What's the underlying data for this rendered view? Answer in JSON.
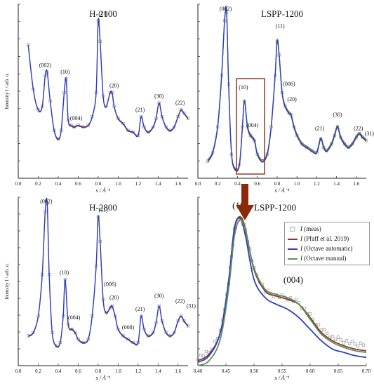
{
  "colors": {
    "measured": "#8a8a8a",
    "pfaff": "#8b3a2a",
    "octave_auto": "#2f3fbf",
    "octave_manual": "#5d8f5d",
    "highlight_box": "#8b2a1a",
    "arrow": "#8b2a0a"
  },
  "chart_data": [
    {
      "type": "line",
      "panel": "top-left",
      "title": "H-2100",
      "xlabel": "s / Å⁻¹",
      "ylabel": "Intensity I / arb. u.",
      "xlim": [
        0,
        1.7
      ],
      "xticks": [
        "0.0",
        "0.2",
        "0.4",
        "0.6",
        "0.8",
        "1.0",
        "1.2",
        "1.4",
        "1.6"
      ],
      "ylim": [
        0,
        1
      ],
      "series": [
        {
          "x": [
            0.1,
            0.15,
            0.2,
            0.24,
            0.27,
            0.29,
            0.32,
            0.36,
            0.4,
            0.43,
            0.46,
            0.48,
            0.5,
            0.53,
            0.56,
            0.6,
            0.65,
            0.7,
            0.74,
            0.78,
            0.8,
            0.82,
            0.85,
            0.88,
            0.92,
            0.94,
            0.96,
            1.0,
            1.05,
            1.1,
            1.15,
            1.2,
            1.23,
            1.26,
            1.3,
            1.35,
            1.38,
            1.41,
            1.44,
            1.48,
            1.52,
            1.56,
            1.6,
            1.63,
            1.66,
            1.7
          ],
          "y": [
            0.78,
            0.52,
            0.4,
            0.42,
            0.6,
            0.62,
            0.45,
            0.28,
            0.23,
            0.28,
            0.5,
            0.58,
            0.34,
            0.31,
            0.3,
            0.31,
            0.3,
            0.31,
            0.36,
            0.5,
            0.92,
            0.8,
            0.48,
            0.42,
            0.5,
            0.5,
            0.42,
            0.35,
            0.32,
            0.28,
            0.27,
            0.25,
            0.36,
            0.3,
            0.27,
            0.3,
            0.35,
            0.44,
            0.36,
            0.3,
            0.28,
            0.3,
            0.36,
            0.4,
            0.38,
            0.35
          ]
        }
      ],
      "annotations": [
        {
          "label": "(002)",
          "x": 0.27,
          "y": 0.65
        },
        {
          "label": "(10)",
          "x": 0.47,
          "y": 0.61
        },
        {
          "label": "(004)",
          "x": 0.58,
          "y": 0.34
        },
        {
          "label": "(11)",
          "x": 0.85,
          "y": 0.95
        },
        {
          "label": "(20)",
          "x": 0.96,
          "y": 0.53
        },
        {
          "label": "(21)",
          "x": 1.22,
          "y": 0.39
        },
        {
          "label": "(30)",
          "x": 1.41,
          "y": 0.47
        },
        {
          "label": "(22)",
          "x": 1.62,
          "y": 0.43
        }
      ]
    },
    {
      "type": "line",
      "panel": "top-right",
      "title": "LSPP-1200",
      "xlabel": "s / Å⁻¹",
      "xlim": [
        0,
        1.7
      ],
      "xticks": [
        "0.0",
        "0.2",
        "0.4",
        "0.6",
        "0.8",
        "1.0",
        "1.2",
        "1.4",
        "1.6"
      ],
      "ylim": [
        0,
        1
      ],
      "series": [
        {
          "x": [
            0.1,
            0.15,
            0.2,
            0.24,
            0.27,
            0.29,
            0.31,
            0.34,
            0.38,
            0.42,
            0.45,
            0.47,
            0.5,
            0.53,
            0.57,
            0.6,
            0.65,
            0.7,
            0.74,
            0.78,
            0.8,
            0.82,
            0.85,
            0.88,
            0.92,
            0.94,
            0.97,
            1.0,
            1.05,
            1.1,
            1.15,
            1.2,
            1.24,
            1.27,
            1.3,
            1.35,
            1.38,
            1.41,
            1.44,
            1.48,
            1.52,
            1.56,
            1.6,
            1.63,
            1.66,
            1.7
          ],
          "y": [
            0.1,
            0.15,
            0.3,
            0.6,
            0.92,
            0.97,
            0.55,
            0.14,
            0.05,
            0.08,
            0.3,
            0.45,
            0.3,
            0.25,
            0.22,
            0.14,
            0.1,
            0.14,
            0.3,
            0.6,
            0.8,
            0.72,
            0.5,
            0.42,
            0.38,
            0.37,
            0.3,
            0.25,
            0.2,
            0.18,
            0.16,
            0.15,
            0.23,
            0.18,
            0.16,
            0.2,
            0.25,
            0.3,
            0.24,
            0.2,
            0.18,
            0.2,
            0.24,
            0.26,
            0.24,
            0.22
          ]
        }
      ],
      "annotations": [
        {
          "label": "(002)",
          "x": 0.28,
          "y": 0.98
        },
        {
          "label": "(10)",
          "x": 0.46,
          "y": 0.52
        },
        {
          "label": "(004)",
          "x": 0.55,
          "y": 0.3
        },
        {
          "label": "(11)",
          "x": 0.83,
          "y": 0.88
        },
        {
          "label": "(006)",
          "x": 0.92,
          "y": 0.54
        },
        {
          "label": "(20)",
          "x": 0.95,
          "y": 0.45
        },
        {
          "label": "(21)",
          "x": 1.23,
          "y": 0.28
        },
        {
          "label": "(30)",
          "x": 1.41,
          "y": 0.36
        },
        {
          "label": "(22)",
          "x": 1.62,
          "y": 0.28
        },
        {
          "label": "(31)",
          "x": 1.73,
          "y": 0.25
        }
      ]
    },
    {
      "type": "line",
      "panel": "bottom-left",
      "title": "H-2800",
      "xlabel": "s / Å⁻¹",
      "ylabel": "Intensity I / arb. u.",
      "xlim": [
        0,
        1.7
      ],
      "xticks": [
        "0.0",
        "0.2",
        "0.4",
        "0.6",
        "0.8",
        "1.0",
        "1.2",
        "1.4",
        "1.6"
      ],
      "ylim": [
        0,
        1
      ],
      "series": [
        {
          "x": [
            0.1,
            0.15,
            0.2,
            0.24,
            0.27,
            0.29,
            0.31,
            0.34,
            0.38,
            0.42,
            0.45,
            0.47,
            0.5,
            0.54,
            0.57,
            0.6,
            0.65,
            0.7,
            0.74,
            0.78,
            0.8,
            0.82,
            0.85,
            0.88,
            0.92,
            0.94,
            0.97,
            1.0,
            1.05,
            1.1,
            1.15,
            1.2,
            1.23,
            1.26,
            1.3,
            1.35,
            1.38,
            1.41,
            1.44,
            1.48,
            1.52,
            1.56,
            1.6,
            1.63,
            1.66,
            1.7
          ],
          "y": [
            0.18,
            0.2,
            0.3,
            0.55,
            0.93,
            0.98,
            0.55,
            0.2,
            0.12,
            0.14,
            0.3,
            0.52,
            0.25,
            0.22,
            0.2,
            0.16,
            0.14,
            0.16,
            0.3,
            0.6,
            0.9,
            0.75,
            0.4,
            0.32,
            0.35,
            0.36,
            0.3,
            0.22,
            0.18,
            0.16,
            0.14,
            0.14,
            0.3,
            0.22,
            0.18,
            0.2,
            0.26,
            0.36,
            0.27,
            0.2,
            0.18,
            0.2,
            0.27,
            0.3,
            0.27,
            0.24
          ]
        }
      ],
      "annotations": [
        {
          "label": "(002)",
          "x": 0.28,
          "y": 0.98
        },
        {
          "label": "(10)",
          "x": 0.46,
          "y": 0.55
        },
        {
          "label": "(004)",
          "x": 0.56,
          "y": 0.28
        },
        {
          "label": "(11)",
          "x": 0.85,
          "y": 0.93
        },
        {
          "label": "(006)",
          "x": 0.92,
          "y": 0.48
        },
        {
          "label": "(20)",
          "x": 0.96,
          "y": 0.4
        },
        {
          "label": "(008)",
          "x": 1.1,
          "y": 0.22
        },
        {
          "label": "(21)",
          "x": 1.22,
          "y": 0.33
        },
        {
          "label": "(30)",
          "x": 1.41,
          "y": 0.41
        },
        {
          "label": "(22)",
          "x": 1.62,
          "y": 0.38
        },
        {
          "label": "(31)",
          "x": 1.73,
          "y": 0.35
        }
      ]
    },
    {
      "type": "line",
      "panel": "bottom-right",
      "title": "LSPP-1200",
      "xlabel": "s / Å⁻¹",
      "xlim": [
        0.4,
        0.7
      ],
      "xticks": [
        "0.40",
        "0.45",
        "0.50",
        "0.55",
        "0.60",
        "0.65",
        "0.70"
      ],
      "ylim": [
        0,
        1
      ],
      "legend_position": "top-right",
      "series": [
        {
          "name": "I (meas)",
          "x": [
            0.4,
            0.42,
            0.44,
            0.455,
            0.465,
            0.475,
            0.485,
            0.5,
            0.52,
            0.54,
            0.56,
            0.58,
            0.6,
            0.62,
            0.64,
            0.66,
            0.68,
            0.7
          ],
          "y": [
            0.05,
            0.08,
            0.2,
            0.5,
            0.82,
            0.9,
            0.82,
            0.58,
            0.45,
            0.42,
            0.41,
            0.38,
            0.3,
            0.22,
            0.17,
            0.15,
            0.13,
            0.13
          ]
        },
        {
          "name": "I (Pfaff et al. 2019)",
          "x": [
            0.4,
            0.42,
            0.44,
            0.455,
            0.465,
            0.475,
            0.485,
            0.5,
            0.52,
            0.54,
            0.56,
            0.58,
            0.6,
            0.62,
            0.64,
            0.66,
            0.68,
            0.7
          ],
          "y": [
            0.03,
            0.07,
            0.2,
            0.5,
            0.82,
            0.9,
            0.82,
            0.58,
            0.45,
            0.42,
            0.4,
            0.37,
            0.29,
            0.2,
            0.15,
            0.12,
            0.1,
            0.09
          ]
        },
        {
          "name": "I (Octave automatic)",
          "x": [
            0.4,
            0.42,
            0.44,
            0.455,
            0.465,
            0.475,
            0.485,
            0.5,
            0.52,
            0.54,
            0.56,
            0.58,
            0.6,
            0.62,
            0.64,
            0.66,
            0.68,
            0.7
          ],
          "y": [
            0.02,
            0.06,
            0.2,
            0.52,
            0.83,
            0.89,
            0.78,
            0.52,
            0.41,
            0.37,
            0.34,
            0.29,
            0.22,
            0.15,
            0.1,
            0.08,
            0.06,
            0.05
          ]
        },
        {
          "name": "I (Octave manual)",
          "x": [
            0.4,
            0.42,
            0.44,
            0.455,
            0.465,
            0.475,
            0.485,
            0.5,
            0.52,
            0.54,
            0.56,
            0.58,
            0.6,
            0.62,
            0.64,
            0.66,
            0.68,
            0.7
          ],
          "y": [
            0.0,
            0.03,
            0.16,
            0.47,
            0.78,
            0.88,
            0.81,
            0.59,
            0.46,
            0.43,
            0.41,
            0.37,
            0.28,
            0.19,
            0.14,
            0.11,
            0.09,
            0.08
          ]
        }
      ],
      "annotations": [
        {
          "label": "(10)",
          "x": 0.475,
          "y": 0.95
        },
        {
          "label": "(004)",
          "x": 0.57,
          "y": 0.5
        }
      ]
    }
  ],
  "legend": {
    "items": [
      {
        "italic": "I",
        "rest": " (meas)"
      },
      {
        "italic": "I",
        "rest": " (Pfaff et al. 2019)"
      },
      {
        "italic": "I",
        "rest": " (Octave automatic)"
      },
      {
        "italic": "I",
        "rest": " (Octave manual)"
      }
    ],
    "marker_symbol": "◻"
  }
}
